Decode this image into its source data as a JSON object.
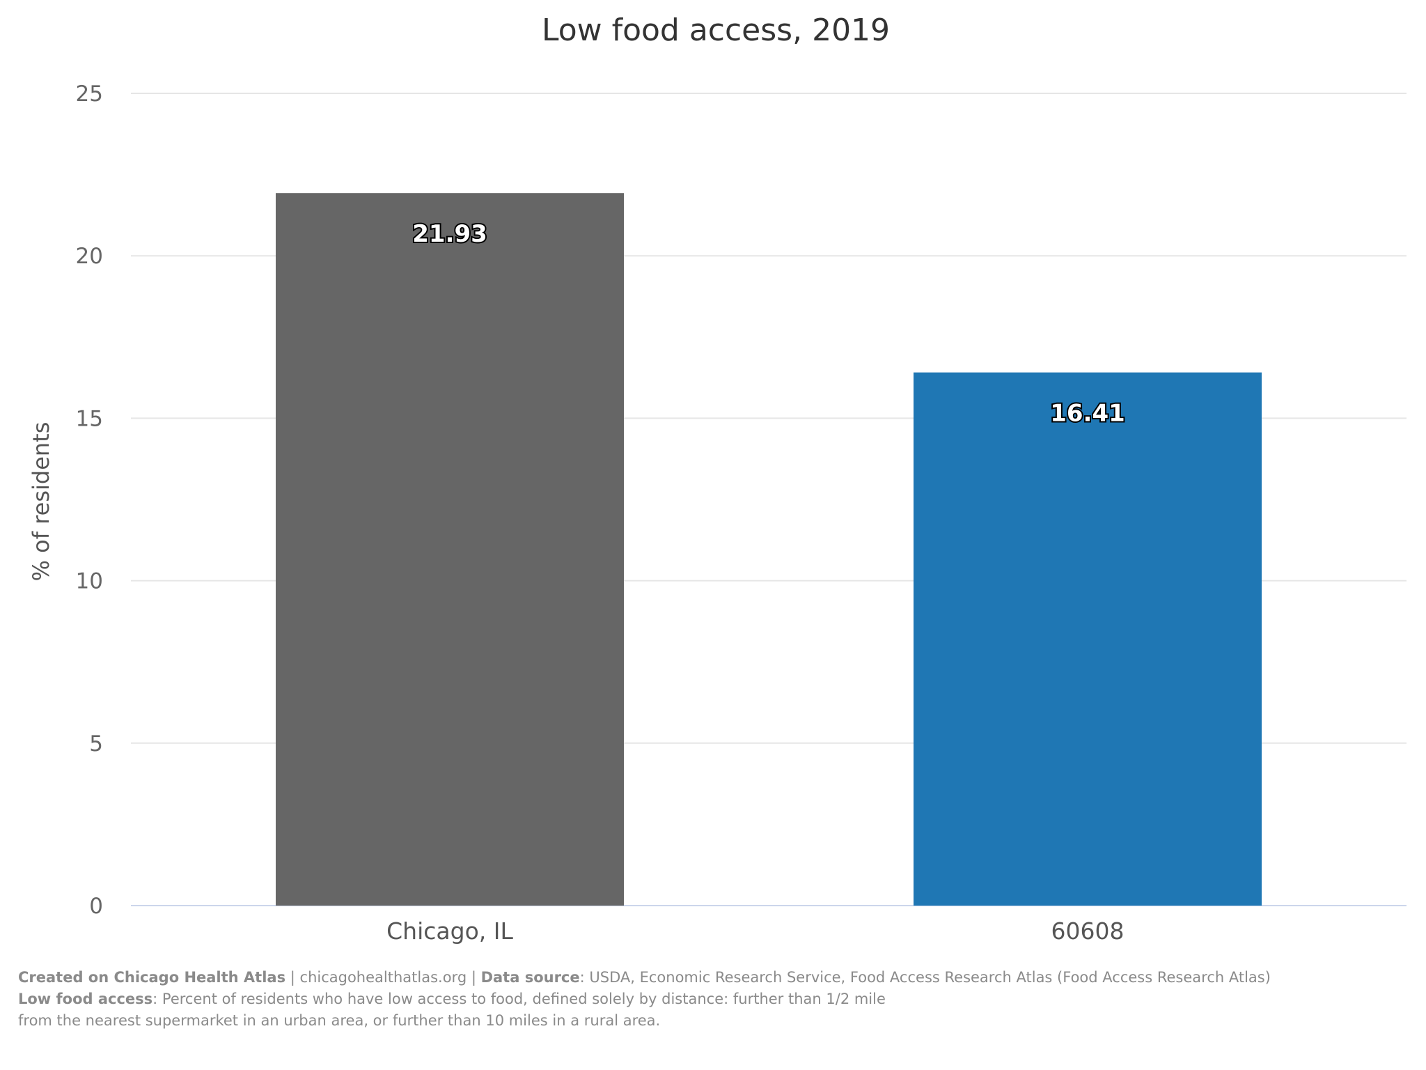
{
  "chart_data": {
    "type": "bar",
    "title": "Low food access, 2019",
    "xlabel": "",
    "ylabel": "% of residents",
    "categories": [
      "Chicago, IL",
      "60608"
    ],
    "values": [
      21.93,
      16.41
    ],
    "data_labels": [
      "21.93",
      "16.41"
    ],
    "colors": [
      "#666666",
      "#1f77b4"
    ],
    "ylim": [
      0,
      25
    ],
    "yticks": [
      0,
      5,
      10,
      15,
      20,
      25
    ],
    "grid": true,
    "legend": "none"
  },
  "caption": {
    "created_label": "Created on Chicago Health Atlas",
    "site": " | chicagohealthatlas.org | ",
    "source_label": "Data source",
    "source_text": ": USDA, Economic Research Service, Food Access Research Atlas (Food Access Research Atlas)",
    "definition_label": "Low food access",
    "definition_text_1": ": Percent of residents who have low access to food, defined solely by distance: further than 1/2 mile",
    "definition_text_2": "from the nearest supermarket in an urban area, or further than 10 miles in a rural area."
  }
}
